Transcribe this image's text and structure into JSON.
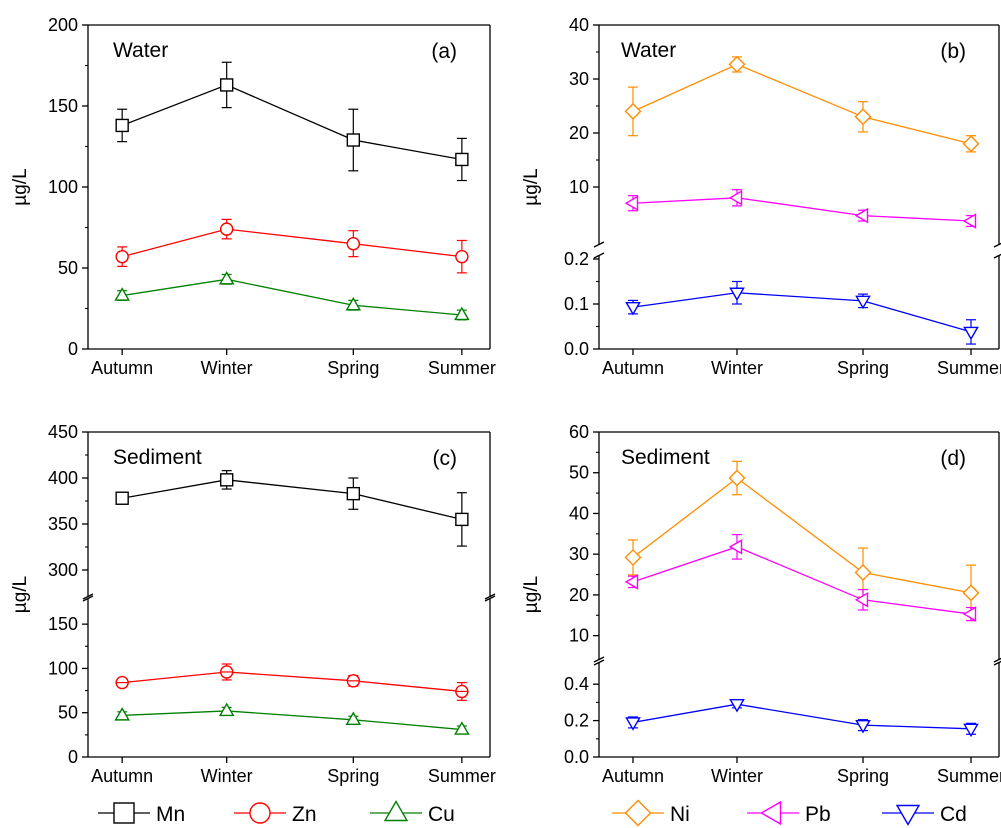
{
  "chart_data": [
    {
      "type": "line",
      "panel_label": "(a)",
      "title": "Water",
      "ylabel": "µg/L",
      "categories": [
        "Autumn",
        "Winter",
        "Spring",
        "Summer"
      ],
      "ylim": [
        0,
        200
      ],
      "yticks": [
        "0",
        "50",
        "100",
        "150",
        "200"
      ],
      "series": [
        {
          "name": "Mn",
          "values": [
            138,
            163,
            129,
            117
          ],
          "errors": [
            10,
            14,
            19,
            13
          ],
          "color": "#000000",
          "marker": "square"
        },
        {
          "name": "Zn",
          "values": [
            57,
            74,
            65,
            57
          ],
          "errors": [
            6,
            6,
            8,
            10
          ],
          "color": "#ff0000",
          "marker": "circle"
        },
        {
          "name": "Cu",
          "values": [
            33,
            43,
            27,
            21
          ],
          "errors": [
            3,
            3,
            3,
            3
          ],
          "color": "#008000",
          "marker": "triangle-up"
        }
      ]
    },
    {
      "type": "line",
      "panel_label": "(b)",
      "title": "Water",
      "ylabel": "µg/L",
      "categories": [
        "Autumn",
        "Winter",
        "Spring",
        "Summer"
      ],
      "broken_axis": true,
      "lower_ylim": [
        0,
        0.2
      ],
      "lower_yticks": [
        "0.0",
        "0.1",
        "0.2"
      ],
      "upper_ylim": [
        0,
        40
      ],
      "upper_yticks": [
        "10",
        "20",
        "30",
        "40"
      ],
      "series": [
        {
          "name": "Ni",
          "values": [
            24,
            32.7,
            23,
            18
          ],
          "errors": [
            4.5,
            1.4,
            2.8,
            1.5
          ],
          "color": "#ff8c00",
          "marker": "diamond"
        },
        {
          "name": "Pb",
          "values": [
            7,
            8,
            4.7,
            3.7
          ],
          "errors": [
            1.4,
            1.5,
            1,
            1
          ],
          "color": "#ff00ff",
          "marker": "triangle-left"
        },
        {
          "name": "Cd",
          "values": [
            0.093,
            0.125,
            0.107,
            0.038
          ],
          "errors": [
            0.015,
            0.025,
            0.015,
            0.027
          ],
          "color": "#0000ff",
          "marker": "triangle-down"
        }
      ]
    },
    {
      "type": "line",
      "panel_label": "(c)",
      "title": "Sediment",
      "ylabel": "µg/L",
      "categories": [
        "Autumn",
        "Winter",
        "Spring",
        "Summer"
      ],
      "broken_axis": true,
      "lower_ylim": [
        0,
        175
      ],
      "lower_yticks": [
        "0",
        "50",
        "100",
        "150"
      ],
      "upper_ylim": [
        275,
        450
      ],
      "upper_yticks": [
        "300",
        "350",
        "400",
        "450"
      ],
      "series": [
        {
          "name": "Mn",
          "values": [
            378,
            398,
            383,
            355
          ],
          "errors": [
            3,
            10,
            17,
            29
          ],
          "color": "#000000",
          "marker": "square"
        },
        {
          "name": "Zn",
          "values": [
            84,
            96,
            86,
            74
          ],
          "errors": [
            3,
            9,
            6,
            10
          ],
          "color": "#ff0000",
          "marker": "circle-plus"
        },
        {
          "name": "Cu",
          "values": [
            47,
            52,
            42,
            31
          ],
          "errors": [
            4,
            4,
            4,
            4
          ],
          "color": "#008000",
          "marker": "triangle-up"
        }
      ]
    },
    {
      "type": "line",
      "panel_label": "(d)",
      "title": "Sediment",
      "ylabel": "µg/L",
      "categories": [
        "Autumn",
        "Winter",
        "Spring",
        "Summer"
      ],
      "broken_axis": true,
      "lower_ylim": [
        0,
        0.5
      ],
      "lower_yticks": [
        "0.0",
        "0.2",
        "0.4"
      ],
      "upper_ylim": [
        5,
        60
      ],
      "upper_yticks": [
        "10",
        "20",
        "30",
        "40",
        "50",
        "60"
      ],
      "series": [
        {
          "name": "Ni",
          "values": [
            29.2,
            48.7,
            25.5,
            20.5
          ],
          "errors": [
            4.3,
            4.1,
            6,
            6.8
          ],
          "color": "#ff8c00",
          "marker": "diamond"
        },
        {
          "name": "Pb",
          "values": [
            23.2,
            31.8,
            18.8,
            15.3
          ],
          "errors": [
            1.4,
            3,
            2.5,
            1.6
          ],
          "color": "#ff00ff",
          "marker": "triangle-left"
        },
        {
          "name": "Cd",
          "values": [
            0.19,
            0.29,
            0.175,
            0.155
          ],
          "errors": [
            0.03,
            0.02,
            0.03,
            0.03
          ],
          "color": "#0000ff",
          "marker": "triangle-down"
        }
      ]
    }
  ],
  "legends": [
    {
      "items": [
        {
          "name": "Mn",
          "color": "#000000",
          "marker": "square"
        },
        {
          "name": "Zn",
          "color": "#ff0000",
          "marker": "circle"
        },
        {
          "name": "Cu",
          "color": "#008000",
          "marker": "triangle-up"
        }
      ]
    },
    {
      "items": [
        {
          "name": "Ni",
          "color": "#ff8c00",
          "marker": "diamond"
        },
        {
          "name": "Pb",
          "color": "#ff00ff",
          "marker": "triangle-left"
        },
        {
          "name": "Cd",
          "color": "#0000ff",
          "marker": "triangle-down"
        }
      ]
    }
  ]
}
